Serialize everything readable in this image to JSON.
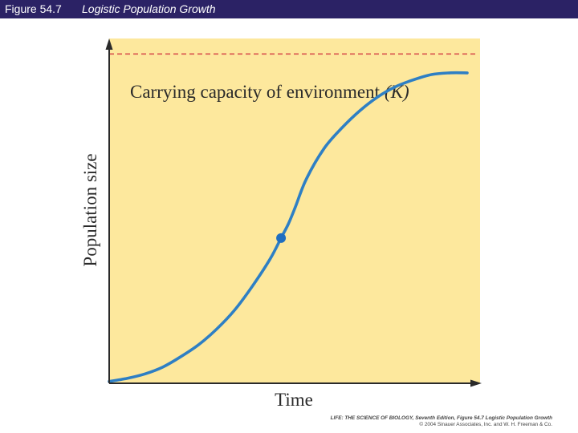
{
  "header": {
    "figure_number": "Figure 54.7",
    "figure_title": "Logistic Population Growth"
  },
  "chart_data": {
    "type": "line",
    "title": "",
    "xlabel": "Time",
    "ylabel": "Population size",
    "xlim": [
      0,
      1
    ],
    "ylim": [
      0,
      1
    ],
    "grid": false,
    "legend": "none",
    "series": [
      {
        "x": [
          0,
          0.05,
          0.1,
          0.15,
          0.2,
          0.25,
          0.3,
          0.35,
          0.4,
          0.45,
          0.48,
          0.5,
          0.52,
          0.55,
          0.6,
          0.65,
          0.7,
          0.75,
          0.8,
          0.85,
          0.9,
          0.95,
          1.0
        ],
        "y": [
          0.003,
          0.012,
          0.025,
          0.045,
          0.075,
          0.11,
          0.155,
          0.21,
          0.28,
          0.36,
          0.42,
          0.46,
          0.51,
          0.59,
          0.68,
          0.74,
          0.79,
          0.83,
          0.86,
          0.88,
          0.895,
          0.9,
          0.9
        ]
      }
    ],
    "carrying_capacity": {
      "label": "Carrying capacity of environment",
      "symbol": "(K)",
      "value": 0.955
    },
    "inflection_point": {
      "x": 0.48,
      "y": 0.42
    },
    "colors": {
      "plot_background": "#fde89d",
      "curve": "#2e7fc4",
      "carrying_capacity_line": "#d9534f",
      "axes": "#2a2a2a",
      "marker": "#1f6ec0"
    }
  },
  "credit": {
    "line1": "LIFE: THE SCIENCE OF BIOLOGY, Seventh Edition, Figure 54.7 Logistic Population Growth",
    "line2": "© 2004 Sinauer Associates, Inc. and W. H. Freeman & Co."
  }
}
